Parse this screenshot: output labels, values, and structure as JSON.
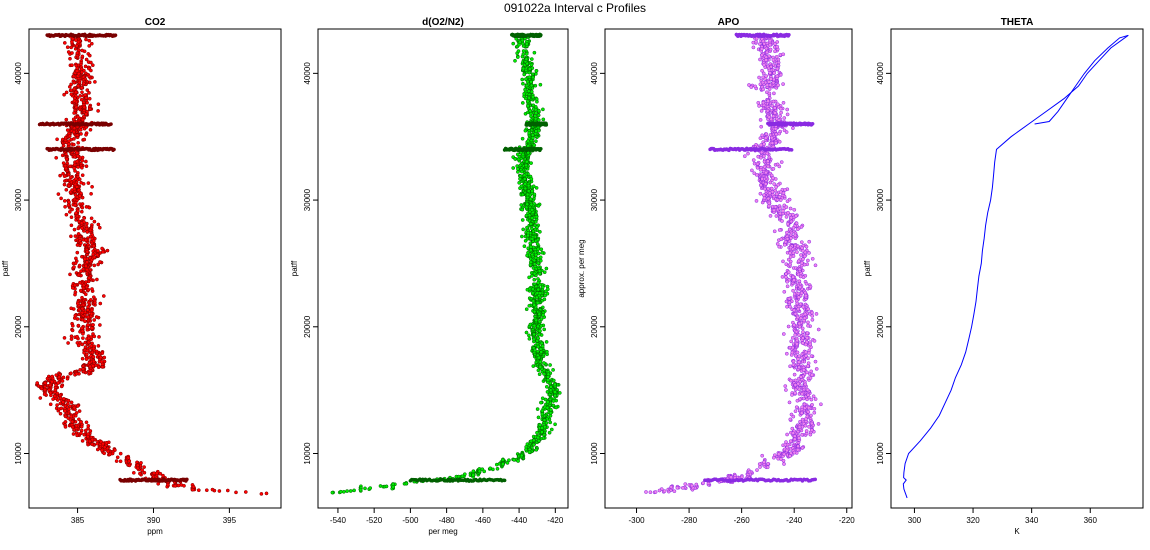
{
  "page": {
    "title": "091022a   Interval c Profiles"
  },
  "chart_data": [
    {
      "type": "scatter",
      "title": "CO2",
      "xlabel": "ppm",
      "ylabel": "patff",
      "xlim": [
        381.8,
        398.4
      ],
      "ylim": [
        5700,
        43500
      ],
      "xticks": [
        385,
        390,
        395
      ],
      "yticks": [
        10000,
        20000,
        30000,
        40000
      ],
      "colors": {
        "fill": "#ff0000",
        "edge": "#7a0000"
      },
      "series": [
        {
          "profile": [
            [
              43000,
              385.2
            ],
            [
              42000,
              385.0
            ],
            [
              41000,
              385.3
            ],
            [
              40000,
              385.4
            ],
            [
              39000,
              385.0
            ],
            [
              38000,
              385.2
            ],
            [
              37000,
              385.3
            ],
            [
              36000,
              385.0
            ],
            [
              35000,
              384.8
            ],
            [
              34000,
              384.6
            ],
            [
              33000,
              384.8
            ],
            [
              32000,
              384.7
            ],
            [
              31000,
              384.9
            ],
            [
              30000,
              384.7
            ],
            [
              29000,
              385.1
            ],
            [
              28000,
              385.6
            ],
            [
              27000,
              385.4
            ],
            [
              26000,
              386.0
            ],
            [
              25000,
              385.5
            ],
            [
              24000,
              385.3
            ],
            [
              23000,
              385.5
            ],
            [
              22000,
              385.6
            ],
            [
              21000,
              385.4
            ],
            [
              20000,
              385.6
            ],
            [
              19000,
              385.2
            ],
            [
              18000,
              386.0
            ],
            [
              17000,
              386.2
            ],
            [
              16500,
              385.5
            ],
            [
              16000,
              383.5
            ],
            [
              15500,
              383.2
            ],
            [
              15000,
              383.0
            ],
            [
              14000,
              384.2
            ],
            [
              13000,
              384.5
            ],
            [
              12000,
              385.0
            ],
            [
              11000,
              386.0
            ],
            [
              10000,
              387.2
            ],
            [
              9000,
              388.8
            ],
            [
              8500,
              389.6
            ],
            [
              8000,
              390.2
            ],
            [
              7500,
              391.5
            ],
            [
              7300,
              392.5
            ],
            [
              7100,
              393.8
            ],
            [
              7000,
              395.0
            ],
            [
              6900,
              396.2
            ],
            [
              6800,
              397.2
            ]
          ],
          "spread": 0.9
        }
      ],
      "bands": [
        {
          "y": 43000,
          "x_from": 383.0,
          "x_to": 387.5
        },
        {
          "y": 36000,
          "x_from": 382.5,
          "x_to": 387.2
        },
        {
          "y": 34000,
          "x_from": 383.0,
          "x_to": 387.4
        },
        {
          "y": 7900,
          "x_from": 387.8,
          "x_to": 392.2
        }
      ]
    },
    {
      "type": "scatter",
      "title": "d(O2/N2)",
      "xlabel": "per meg",
      "ylabel": "patff",
      "xlim": [
        -551,
        -413
      ],
      "ylim": [
        5700,
        43500
      ],
      "xticks": [
        -540,
        -520,
        -500,
        -480,
        -460,
        -440,
        -420
      ],
      "yticks": [
        10000,
        20000,
        30000,
        40000
      ],
      "colors": {
        "fill": "#00ee00",
        "edge": "#006000"
      },
      "series": [
        {
          "profile": [
            [
              43000,
              -438
            ],
            [
              42000,
              -437
            ],
            [
              41000,
              -436
            ],
            [
              40000,
              -435
            ],
            [
              39000,
              -434
            ],
            [
              38000,
              -433
            ],
            [
              37000,
              -432
            ],
            [
              36000,
              -431
            ],
            [
              35000,
              -432
            ],
            [
              34000,
              -436
            ],
            [
              33000,
              -438
            ],
            [
              32000,
              -437
            ],
            [
              31000,
              -436
            ],
            [
              30000,
              -435
            ],
            [
              29000,
              -433
            ],
            [
              28000,
              -432
            ],
            [
              27000,
              -433
            ],
            [
              26000,
              -432
            ],
            [
              25000,
              -431
            ],
            [
              24000,
              -430
            ],
            [
              23000,
              -429
            ],
            [
              22000,
              -430
            ],
            [
              21000,
              -429
            ],
            [
              20000,
              -430
            ],
            [
              19000,
              -430
            ],
            [
              18000,
              -429
            ],
            [
              17000,
              -428
            ],
            [
              16000,
              -425
            ],
            [
              15000,
              -421
            ],
            [
              14000,
              -423
            ],
            [
              13000,
              -425
            ],
            [
              12000,
              -427
            ],
            [
              11000,
              -430
            ],
            [
              10000,
              -437
            ],
            [
              9500,
              -444
            ],
            [
              9000,
              -452
            ],
            [
              8500,
              -462
            ],
            [
              8000,
              -480
            ],
            [
              7700,
              -500
            ],
            [
              7400,
              -515
            ],
            [
              7200,
              -525
            ],
            [
              7000,
              -535
            ],
            [
              6900,
              -542
            ]
          ],
          "spread": 4.5
        }
      ],
      "bands": [
        {
          "y": 43000,
          "x_from": -444,
          "x_to": -428
        },
        {
          "y": 36000,
          "x_from": -436,
          "x_to": -425
        },
        {
          "y": 34000,
          "x_from": -448,
          "x_to": -428
        },
        {
          "y": 7900,
          "x_from": -500,
          "x_to": -448
        }
      ]
    },
    {
      "type": "scatter",
      "title": "APO",
      "xlabel": "",
      "ylabel": "approx. per meg",
      "xlim": [
        -312,
        -218
      ],
      "ylim": [
        5700,
        43500
      ],
      "xticks": [
        -300,
        -280,
        -260,
        -240,
        -220
      ],
      "yticks": [
        10000,
        20000,
        30000,
        40000
      ],
      "colors": {
        "fill": "#ee82ee",
        "edge": "#8a2be2"
      },
      "series": [
        {
          "profile": [
            [
              43000,
              -252
            ],
            [
              42000,
              -250
            ],
            [
              41000,
              -249
            ],
            [
              40000,
              -248
            ],
            [
              39000,
              -250
            ],
            [
              38000,
              -249
            ],
            [
              37000,
              -248
            ],
            [
              36000,
              -247
            ],
            [
              35000,
              -248
            ],
            [
              34000,
              -252
            ],
            [
              33000,
              -252
            ],
            [
              32000,
              -250
            ],
            [
              31000,
              -249
            ],
            [
              30000,
              -248
            ],
            [
              29000,
              -244
            ],
            [
              28000,
              -240
            ],
            [
              27000,
              -241
            ],
            [
              26000,
              -240
            ],
            [
              25000,
              -239
            ],
            [
              24000,
              -240
            ],
            [
              23000,
              -238
            ],
            [
              22000,
              -239
            ],
            [
              21000,
              -237
            ],
            [
              20000,
              -238
            ],
            [
              19000,
              -236
            ],
            [
              18000,
              -238
            ],
            [
              17000,
              -237
            ],
            [
              16000,
              -237
            ],
            [
              15000,
              -238
            ],
            [
              14000,
              -236
            ],
            [
              13000,
              -237
            ],
            [
              12000,
              -236
            ],
            [
              11000,
              -240
            ],
            [
              10000,
              -243
            ],
            [
              9500,
              -247
            ],
            [
              9000,
              -251
            ],
            [
              8500,
              -258
            ],
            [
              8000,
              -262
            ],
            [
              7700,
              -272
            ],
            [
              7400,
              -280
            ],
            [
              7200,
              -285
            ],
            [
              7000,
              -290
            ],
            [
              6900,
              -293
            ]
          ],
          "spread": 5.5
        }
      ],
      "bands": [
        {
          "y": 43000,
          "x_from": -262,
          "x_to": -242
        },
        {
          "y": 36000,
          "x_from": -250,
          "x_to": -233
        },
        {
          "y": 34000,
          "x_from": -272,
          "x_to": -241
        },
        {
          "y": 7900,
          "x_from": -274,
          "x_to": -232
        }
      ]
    },
    {
      "type": "line",
      "title": "THETA",
      "xlabel": "K",
      "ylabel": "patff",
      "xlim": [
        292,
        378
      ],
      "ylim": [
        5700,
        43500
      ],
      "xticks": [
        300,
        320,
        340,
        360
      ],
      "yticks": [
        10000,
        20000,
        30000,
        40000
      ],
      "colors": {
        "line": "#0000ff"
      },
      "series": [
        {
          "points": [
            [
              6500,
              297.5
            ],
            [
              6800,
              297.0
            ],
            [
              7200,
              296.4
            ],
            [
              7600,
              296.2
            ],
            [
              7900,
              297.2
            ],
            [
              8100,
              296.3
            ],
            [
              8500,
              296.4
            ],
            [
              9200,
              296.8
            ],
            [
              10000,
              298.0
            ],
            [
              11000,
              302.0
            ],
            [
              12000,
              305.5
            ],
            [
              13000,
              308.5
            ],
            [
              14000,
              310.5
            ],
            [
              15000,
              312.5
            ],
            [
              16000,
              314.0
            ],
            [
              17000,
              316.0
            ],
            [
              18000,
              317.5
            ],
            [
              19000,
              318.5
            ],
            [
              20000,
              319.5
            ],
            [
              21000,
              320.3
            ],
            [
              22000,
              321.0
            ],
            [
              23000,
              321.5
            ],
            [
              24000,
              322.0
            ],
            [
              25000,
              322.8
            ],
            [
              26000,
              323.2
            ],
            [
              27000,
              323.8
            ],
            [
              28000,
              324.3
            ],
            [
              29000,
              325.0
            ],
            [
              30000,
              326.0
            ],
            [
              31000,
              326.6
            ],
            [
              32000,
              327.0
            ],
            [
              33000,
              327.4
            ],
            [
              34000,
              328.0
            ],
            [
              35000,
              333.0
            ],
            [
              36000,
              339.0
            ],
            [
              37000,
              345.0
            ],
            [
              38000,
              351.0
            ],
            [
              39000,
              356.0
            ],
            [
              40000,
              359.0
            ],
            [
              41000,
              363.0
            ],
            [
              42000,
              367.0
            ],
            [
              43000,
              373.0
            ]
          ]
        },
        {
          "points": [
            [
              36000,
              341.0
            ],
            [
              36200,
              346.0
            ],
            [
              37000,
              349.0
            ],
            [
              38000,
              352.0
            ],
            [
              39000,
              355.0
            ],
            [
              40000,
              358.0
            ],
            [
              41000,
              361.5
            ],
            [
              42000,
              366.0
            ],
            [
              42800,
              370.0
            ],
            [
              43000,
              373.0
            ]
          ]
        }
      ]
    }
  ]
}
